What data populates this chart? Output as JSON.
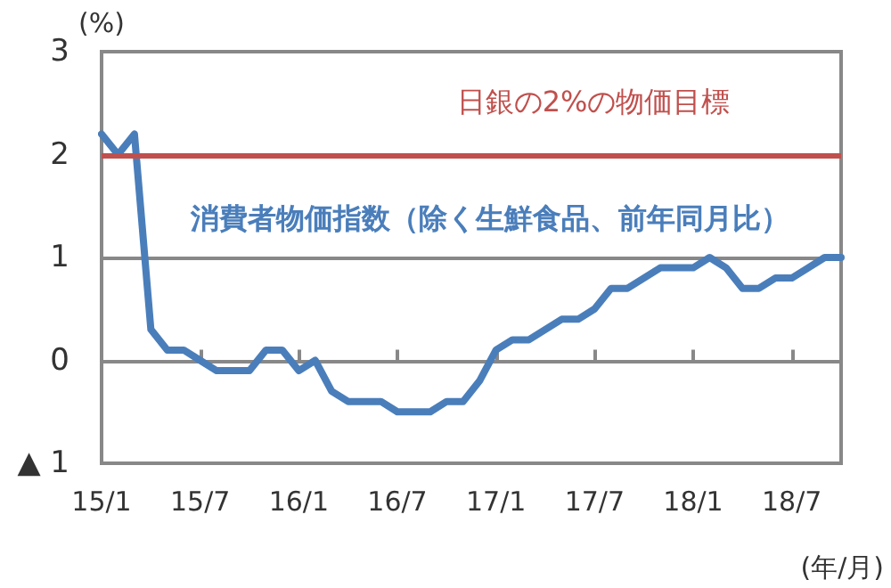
{
  "chart_data": {
    "type": "line",
    "xlabel": "(年/月)",
    "ylabel": "(%)",
    "categories": [
      "15/1",
      null,
      null,
      null,
      null,
      null,
      "15/7",
      null,
      null,
      null,
      null,
      null,
      "16/1",
      null,
      null,
      null,
      null,
      null,
      "16/7",
      null,
      null,
      null,
      null,
      null,
      "17/1",
      null,
      null,
      null,
      null,
      null,
      "17/7",
      null,
      null,
      null,
      null,
      null,
      "18/1",
      null,
      null,
      null,
      null,
      null,
      "18/7",
      null,
      null,
      null
    ],
    "series": [
      {
        "name": "消費者物価指数（除く生鮮食品、前年同月比）",
        "color": "#4a7ebb",
        "values": [
          2.2,
          2.0,
          2.2,
          0.3,
          0.1,
          0.1,
          0.0,
          -0.1,
          -0.1,
          -0.1,
          0.1,
          0.1,
          -0.1,
          0.0,
          -0.3,
          -0.4,
          -0.4,
          -0.4,
          -0.5,
          -0.5,
          -0.5,
          -0.4,
          -0.4,
          -0.2,
          0.1,
          0.2,
          0.2,
          0.3,
          0.4,
          0.4,
          0.5,
          0.7,
          0.7,
          0.8,
          0.9,
          0.9,
          0.9,
          1.0,
          0.9,
          0.7,
          0.7,
          0.8,
          0.8,
          0.9,
          1.0,
          1.0
        ]
      }
    ],
    "ylim": [
      -1,
      3
    ],
    "yticks": [
      {
        "value": -1,
        "label": "▲ 1"
      },
      0,
      1,
      2,
      3
    ],
    "ref_lines": [
      {
        "axis": "y",
        "value": 2,
        "label": "日銀の2%の物価目標",
        "color": "#c0504d"
      }
    ],
    "grid": "y",
    "marker": "none",
    "line_style": "solid",
    "legend": false
  }
}
